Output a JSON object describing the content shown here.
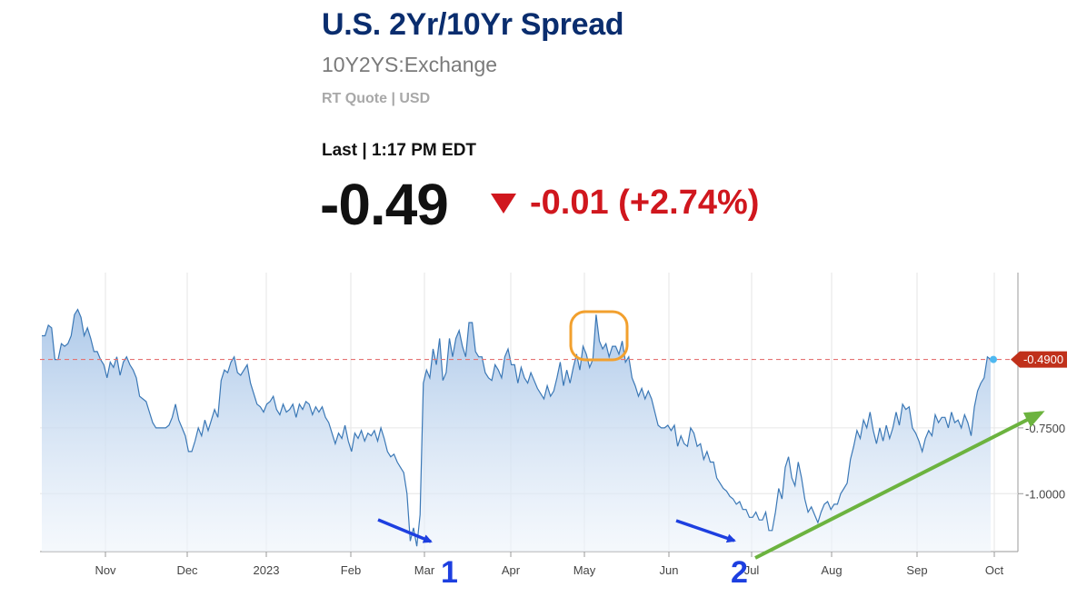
{
  "header": {
    "title": "U.S. 2Yr/10Yr Spread",
    "symbol": "10Y2YS:Exchange",
    "quote_info": "RT Quote | USD",
    "last_time": "Last | 1:17 PM EDT",
    "last_price": "-0.49",
    "change": "-0.01 (+2.74%)",
    "change_direction": "down",
    "change_color": "#d0171e"
  },
  "chart_data": {
    "type": "area",
    "title": "",
    "xlabel": "",
    "ylabel": "",
    "ylim": [
      -1.22,
      -0.16
    ],
    "x_ticks": [
      "Nov",
      "Dec",
      "2023",
      "Feb",
      "Mar",
      "Apr",
      "May",
      "Jun",
      "Jul",
      "Aug",
      "Sep",
      "Oct"
    ],
    "y_ticks": [
      -1.0,
      -0.75
    ],
    "y_tick_labels": [
      "-1.0000",
      "-0.7500"
    ],
    "grid": true,
    "line_color": "#3b78b6",
    "fill_color": "#b9d1ec",
    "current_value": -0.49,
    "current_value_label": "-0.4900",
    "current_value_color": "#c0301a",
    "series": [
      {
        "values": [
          -0.4,
          -0.4,
          -0.36,
          -0.37,
          -0.49,
          -0.49,
          -0.43,
          -0.44,
          -0.43,
          -0.4,
          -0.32,
          -0.3,
          -0.33,
          -0.4,
          -0.37,
          -0.41,
          -0.46,
          -0.46,
          -0.49,
          -0.51,
          -0.56,
          -0.5,
          -0.52,
          -0.48,
          -0.55,
          -0.5,
          -0.48,
          -0.51,
          -0.53,
          -0.56,
          -0.63,
          -0.64,
          -0.65,
          -0.69,
          -0.73,
          -0.75,
          -0.75,
          -0.75,
          -0.75,
          -0.74,
          -0.71,
          -0.66,
          -0.72,
          -0.75,
          -0.78,
          -0.84,
          -0.84,
          -0.8,
          -0.75,
          -0.78,
          -0.72,
          -0.76,
          -0.72,
          -0.68,
          -0.71,
          -0.57,
          -0.53,
          -0.54,
          -0.5,
          -0.48,
          -0.54,
          -0.55,
          -0.53,
          -0.51,
          -0.58,
          -0.62,
          -0.66,
          -0.67,
          -0.69,
          -0.66,
          -0.65,
          -0.63,
          -0.68,
          -0.7,
          -0.66,
          -0.69,
          -0.68,
          -0.66,
          -0.71,
          -0.66,
          -0.68,
          -0.65,
          -0.66,
          -0.7,
          -0.67,
          -0.69,
          -0.67,
          -0.71,
          -0.73,
          -0.77,
          -0.81,
          -0.77,
          -0.79,
          -0.74,
          -0.8,
          -0.84,
          -0.77,
          -0.79,
          -0.76,
          -0.8,
          -0.77,
          -0.78,
          -0.76,
          -0.8,
          -0.75,
          -0.79,
          -0.84,
          -0.86,
          -0.85,
          -0.88,
          -0.9,
          -0.92,
          -1.0,
          -1.18,
          -1.13,
          -1.2,
          -1.08,
          -0.58,
          -0.53,
          -0.56,
          -0.45,
          -0.51,
          -0.41,
          -0.57,
          -0.54,
          -0.41,
          -0.48,
          -0.41,
          -0.38,
          -0.44,
          -0.48,
          -0.35,
          -0.35,
          -0.46,
          -0.48,
          -0.48,
          -0.54,
          -0.56,
          -0.57,
          -0.51,
          -0.53,
          -0.56,
          -0.48,
          -0.45,
          -0.51,
          -0.51,
          -0.58,
          -0.52,
          -0.56,
          -0.58,
          -0.54,
          -0.57,
          -0.6,
          -0.62,
          -0.64,
          -0.59,
          -0.63,
          -0.61,
          -0.56,
          -0.5,
          -0.59,
          -0.53,
          -0.58,
          -0.52,
          -0.47,
          -0.53,
          -0.44,
          -0.47,
          -0.52,
          -0.49,
          -0.32,
          -0.42,
          -0.45,
          -0.43,
          -0.48,
          -0.44,
          -0.44,
          -0.47,
          -0.42,
          -0.5,
          -0.48,
          -0.56,
          -0.59,
          -0.63,
          -0.6,
          -0.64,
          -0.61,
          -0.64,
          -0.69,
          -0.74,
          -0.75,
          -0.75,
          -0.74,
          -0.76,
          -0.74,
          -0.82,
          -0.78,
          -0.81,
          -0.82,
          -0.75,
          -0.77,
          -0.82,
          -0.81,
          -0.87,
          -0.84,
          -0.88,
          -0.88,
          -0.94,
          -0.96,
          -0.98,
          -0.99,
          -1.01,
          -1.02,
          -1.04,
          -1.03,
          -1.06,
          -1.06,
          -1.09,
          -1.09,
          -1.07,
          -1.1,
          -1.1,
          -1.07,
          -1.14,
          -1.14,
          -1.07,
          -0.98,
          -1.02,
          -0.9,
          -0.86,
          -0.94,
          -0.97,
          -0.88,
          -0.94,
          -1.02,
          -1.07,
          -1.05,
          -1.08,
          -1.11,
          -1.07,
          -1.04,
          -1.03,
          -1.06,
          -1.04,
          -1.04,
          -1.0,
          -0.98,
          -0.96,
          -0.87,
          -0.82,
          -0.76,
          -0.79,
          -0.72,
          -0.75,
          -0.69,
          -0.76,
          -0.81,
          -0.75,
          -0.8,
          -0.74,
          -0.79,
          -0.75,
          -0.69,
          -0.74,
          -0.66,
          -0.68,
          -0.67,
          -0.75,
          -0.77,
          -0.8,
          -0.84,
          -0.79,
          -0.76,
          -0.78,
          -0.7,
          -0.73,
          -0.71,
          -0.71,
          -0.75,
          -0.69,
          -0.73,
          -0.72,
          -0.75,
          -0.7,
          -0.73,
          -0.78,
          -0.67,
          -0.61,
          -0.58,
          -0.56,
          -0.48,
          -0.49
        ]
      }
    ],
    "annotations": {
      "marker_1_label": "1",
      "marker_2_label": "2",
      "arrow_color": "#1d3fe0",
      "highlight_box_color": "#f2a02e",
      "trend_arrow_color": "#6cb33f"
    }
  }
}
